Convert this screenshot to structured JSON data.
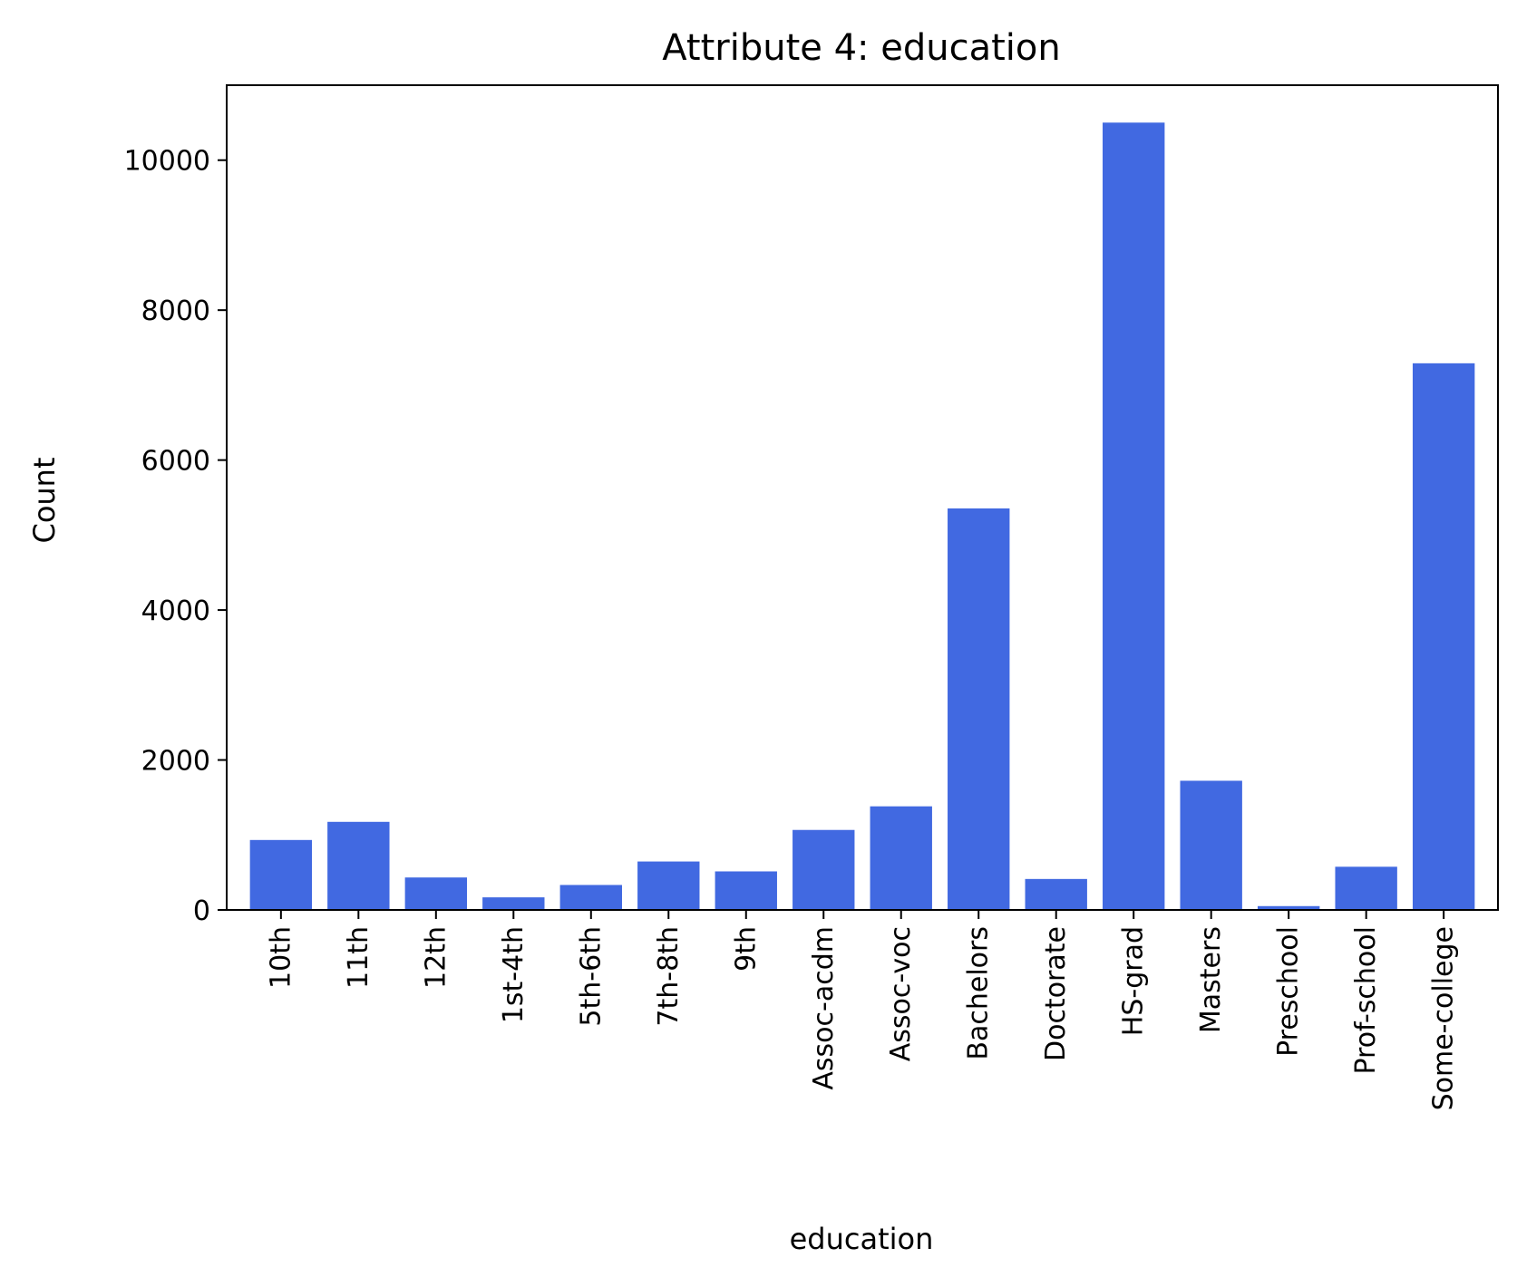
{
  "chart_data": {
    "type": "bar",
    "title": "Attribute 4: education",
    "xlabel": "education",
    "ylabel": "Count",
    "categories": [
      "10th",
      "11th",
      "12th",
      "1st-4th",
      "5th-6th",
      "7th-8th",
      "9th",
      "Assoc-acdm",
      "Assoc-voc",
      "Bachelors",
      "Doctorate",
      "HS-grad",
      "Masters",
      "Preschool",
      "Prof-school",
      "Some-college"
    ],
    "values": [
      933,
      1175,
      433,
      168,
      333,
      646,
      514,
      1067,
      1382,
      5355,
      413,
      10501,
      1723,
      51,
      576,
      7291
    ],
    "ylim": [
      0,
      11000
    ],
    "yticks": [
      0,
      2000,
      4000,
      6000,
      8000,
      10000
    ],
    "bar_color": "#4169e1",
    "grid": false,
    "legend": "none"
  }
}
